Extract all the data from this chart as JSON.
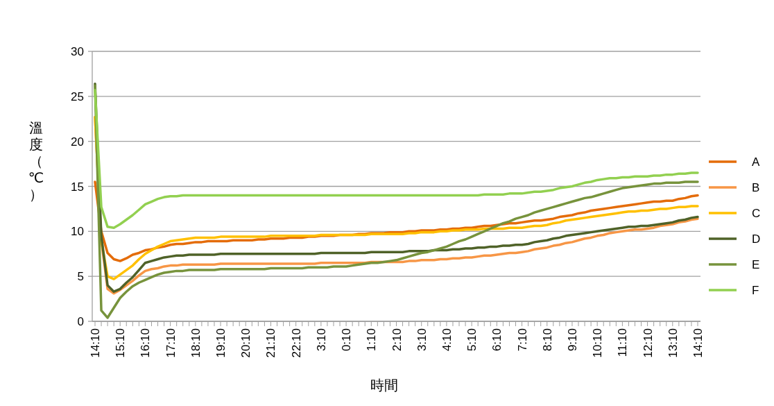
{
  "chart_data": {
    "type": "line",
    "xlabel": "時間",
    "ylabel": "溫度（℃）",
    "categories": [
      "14:10",
      null,
      null,
      null,
      "15:10",
      null,
      null,
      null,
      "16:10",
      null,
      null,
      null,
      "17:10",
      null,
      null,
      null,
      "18:10",
      null,
      null,
      null,
      "19:10",
      null,
      null,
      null,
      "20:10",
      null,
      null,
      null,
      "21:10",
      null,
      null,
      null,
      "22:10",
      null,
      null,
      null,
      "3:10",
      null,
      null,
      null,
      "0:10",
      null,
      null,
      null,
      "1:10",
      null,
      null,
      null,
      "2:10",
      null,
      null,
      null,
      "3:10",
      null,
      null,
      null,
      "4:10",
      null,
      null,
      null,
      "5:10",
      null,
      null,
      null,
      "6:10",
      null,
      null,
      null,
      "7:10",
      null,
      null,
      null,
      "8:10",
      null,
      null,
      null,
      "9:10",
      null,
      null,
      null,
      "10:10",
      null,
      null,
      null,
      "11:10",
      null,
      null,
      null,
      "12:10",
      null,
      null,
      null,
      "13:10",
      null,
      null,
      null,
      "14:10"
    ],
    "series": [
      {
        "name": "A",
        "color": "#e46c0a",
        "values": [
          15.5,
          10,
          7.6,
          6.9,
          6.7,
          7.0,
          7.4,
          7.6,
          7.9,
          8.0,
          8.2,
          8.3,
          8.5,
          8.6,
          8.6,
          8.7,
          8.8,
          8.8,
          8.9,
          8.9,
          8.9,
          8.9,
          9.0,
          9.0,
          9.0,
          9.0,
          9.1,
          9.1,
          9.2,
          9.2,
          9.2,
          9.3,
          9.3,
          9.3,
          9.4,
          9.4,
          9.5,
          9.5,
          9.5,
          9.6,
          9.6,
          9.6,
          9.7,
          9.7,
          9.8,
          9.8,
          9.8,
          9.9,
          9.9,
          9.9,
          10.0,
          10.0,
          10.1,
          10.1,
          10.1,
          10.2,
          10.2,
          10.3,
          10.3,
          10.4,
          10.4,
          10.5,
          10.6,
          10.6,
          10.7,
          10.8,
          10.9,
          10.9,
          11.0,
          11.1,
          11.2,
          11.2,
          11.3,
          11.4,
          11.6,
          11.7,
          11.8,
          12.0,
          12.1,
          12.3,
          12.4,
          12.5,
          12.6,
          12.7,
          12.8,
          12.9,
          13.0,
          13.1,
          13.2,
          13.3,
          13.3,
          13.4,
          13.4,
          13.6,
          13.7,
          13.9,
          14.0
        ]
      },
      {
        "name": "B",
        "color": "#f79646",
        "values": [
          22.7,
          9,
          3.6,
          3.1,
          3.5,
          4.0,
          4.5,
          5.1,
          5.6,
          5.8,
          5.9,
          6.1,
          6.2,
          6.2,
          6.3,
          6.3,
          6.3,
          6.3,
          6.3,
          6.3,
          6.4,
          6.4,
          6.4,
          6.4,
          6.4,
          6.4,
          6.4,
          6.4,
          6.4,
          6.4,
          6.4,
          6.4,
          6.4,
          6.4,
          6.4,
          6.4,
          6.5,
          6.5,
          6.5,
          6.5,
          6.5,
          6.5,
          6.5,
          6.5,
          6.6,
          6.6,
          6.6,
          6.6,
          6.6,
          6.6,
          6.7,
          6.7,
          6.8,
          6.8,
          6.8,
          6.9,
          6.9,
          7.0,
          7.0,
          7.1,
          7.1,
          7.2,
          7.3,
          7.3,
          7.4,
          7.5,
          7.6,
          7.6,
          7.7,
          7.8,
          8.0,
          8.1,
          8.2,
          8.4,
          8.5,
          8.7,
          8.8,
          9.0,
          9.2,
          9.3,
          9.5,
          9.6,
          9.8,
          9.9,
          10.0,
          10.1,
          10.2,
          10.2,
          10.3,
          10.4,
          10.6,
          10.7,
          10.8,
          11.0,
          11.1,
          11.3,
          11.4
        ]
      },
      {
        "name": "C",
        "color": "#ffc000",
        "values": [
          22.7,
          9,
          5.0,
          4.7,
          5.2,
          5.7,
          6.2,
          6.9,
          7.5,
          7.9,
          8.3,
          8.6,
          8.9,
          9.0,
          9.1,
          9.2,
          9.3,
          9.3,
          9.3,
          9.3,
          9.4,
          9.4,
          9.4,
          9.4,
          9.4,
          9.4,
          9.4,
          9.4,
          9.5,
          9.5,
          9.5,
          9.5,
          9.5,
          9.5,
          9.5,
          9.5,
          9.6,
          9.6,
          9.6,
          9.6,
          9.6,
          9.6,
          9.6,
          9.6,
          9.7,
          9.7,
          9.7,
          9.7,
          9.7,
          9.7,
          9.8,
          9.8,
          9.9,
          9.9,
          9.9,
          10.0,
          10.0,
          10.1,
          10.1,
          10.2,
          10.2,
          10.2,
          10.3,
          10.3,
          10.3,
          10.3,
          10.4,
          10.4,
          10.4,
          10.5,
          10.6,
          10.6,
          10.7,
          10.9,
          11.0,
          11.2,
          11.3,
          11.4,
          11.5,
          11.6,
          11.7,
          11.8,
          11.9,
          12.0,
          12.1,
          12.2,
          12.2,
          12.3,
          12.3,
          12.4,
          12.5,
          12.5,
          12.6,
          12.7,
          12.7,
          12.8,
          12.8
        ]
      },
      {
        "name": "D",
        "color": "#4f6228",
        "values": [
          26.4,
          9.5,
          4.0,
          3.3,
          3.6,
          4.3,
          4.9,
          5.7,
          6.5,
          6.7,
          6.9,
          7.1,
          7.2,
          7.3,
          7.3,
          7.4,
          7.4,
          7.4,
          7.4,
          7.4,
          7.5,
          7.5,
          7.5,
          7.5,
          7.5,
          7.5,
          7.5,
          7.5,
          7.5,
          7.5,
          7.5,
          7.5,
          7.5,
          7.5,
          7.5,
          7.5,
          7.6,
          7.6,
          7.6,
          7.6,
          7.6,
          7.6,
          7.6,
          7.6,
          7.7,
          7.7,
          7.7,
          7.7,
          7.7,
          7.7,
          7.8,
          7.8,
          7.8,
          7.8,
          7.9,
          7.9,
          7.9,
          8.0,
          8.0,
          8.1,
          8.1,
          8.2,
          8.2,
          8.3,
          8.3,
          8.4,
          8.4,
          8.5,
          8.5,
          8.6,
          8.8,
          8.9,
          9.0,
          9.2,
          9.3,
          9.5,
          9.6,
          9.7,
          9.8,
          9.9,
          10.0,
          10.1,
          10.2,
          10.3,
          10.4,
          10.5,
          10.5,
          10.6,
          10.6,
          10.7,
          10.8,
          10.9,
          11.0,
          11.2,
          11.3,
          11.5,
          11.6
        ]
      },
      {
        "name": "E",
        "color": "#77933c",
        "values": [
          26.2,
          1.2,
          0.4,
          1.5,
          2.6,
          3.3,
          3.9,
          4.3,
          4.6,
          4.9,
          5.2,
          5.4,
          5.5,
          5.6,
          5.6,
          5.7,
          5.7,
          5.7,
          5.7,
          5.7,
          5.8,
          5.8,
          5.8,
          5.8,
          5.8,
          5.8,
          5.8,
          5.8,
          5.9,
          5.9,
          5.9,
          5.9,
          5.9,
          5.9,
          6.0,
          6.0,
          6.0,
          6.0,
          6.1,
          6.1,
          6.1,
          6.2,
          6.3,
          6.4,
          6.5,
          6.5,
          6.6,
          6.7,
          6.8,
          7.0,
          7.2,
          7.4,
          7.6,
          7.7,
          7.9,
          8.1,
          8.3,
          8.6,
          8.9,
          9.1,
          9.4,
          9.7,
          10.0,
          10.3,
          10.6,
          10.9,
          11.1,
          11.4,
          11.6,
          11.8,
          12.1,
          12.3,
          12.5,
          12.7,
          12.9,
          13.1,
          13.3,
          13.5,
          13.7,
          13.8,
          14.0,
          14.2,
          14.4,
          14.6,
          14.8,
          14.9,
          15.0,
          15.1,
          15.2,
          15.3,
          15.3,
          15.4,
          15.4,
          15.4,
          15.5,
          15.5,
          15.5
        ]
      },
      {
        "name": "F",
        "color": "#92d050",
        "values": [
          25.7,
          12.7,
          10.5,
          10.4,
          10.8,
          11.3,
          11.8,
          12.4,
          13.0,
          13.3,
          13.6,
          13.8,
          13.9,
          13.9,
          14.0,
          14.0,
          14.0,
          14.0,
          14.0,
          14.0,
          14.0,
          14.0,
          14.0,
          14.0,
          14.0,
          14.0,
          14.0,
          14.0,
          14.0,
          14.0,
          14.0,
          14.0,
          14.0,
          14.0,
          14.0,
          14.0,
          14.0,
          14.0,
          14.0,
          14.0,
          14.0,
          14.0,
          14.0,
          14.0,
          14.0,
          14.0,
          14.0,
          14.0,
          14.0,
          14.0,
          14.0,
          14.0,
          14.0,
          14.0,
          14.0,
          14.0,
          14.0,
          14.0,
          14.0,
          14.0,
          14.0,
          14.0,
          14.1,
          14.1,
          14.1,
          14.1,
          14.2,
          14.2,
          14.2,
          14.3,
          14.4,
          14.4,
          14.5,
          14.6,
          14.8,
          14.9,
          15.0,
          15.2,
          15.4,
          15.5,
          15.7,
          15.8,
          15.9,
          15.9,
          16.0,
          16.0,
          16.1,
          16.1,
          16.1,
          16.2,
          16.2,
          16.3,
          16.3,
          16.4,
          16.4,
          16.5,
          16.5
        ]
      }
    ],
    "ylim": [
      0,
      30
    ],
    "yticks": [
      0,
      5,
      10,
      15,
      20,
      25,
      30
    ],
    "grid": "y",
    "legend": "right",
    "marker": "none",
    "line_style": "solid"
  }
}
